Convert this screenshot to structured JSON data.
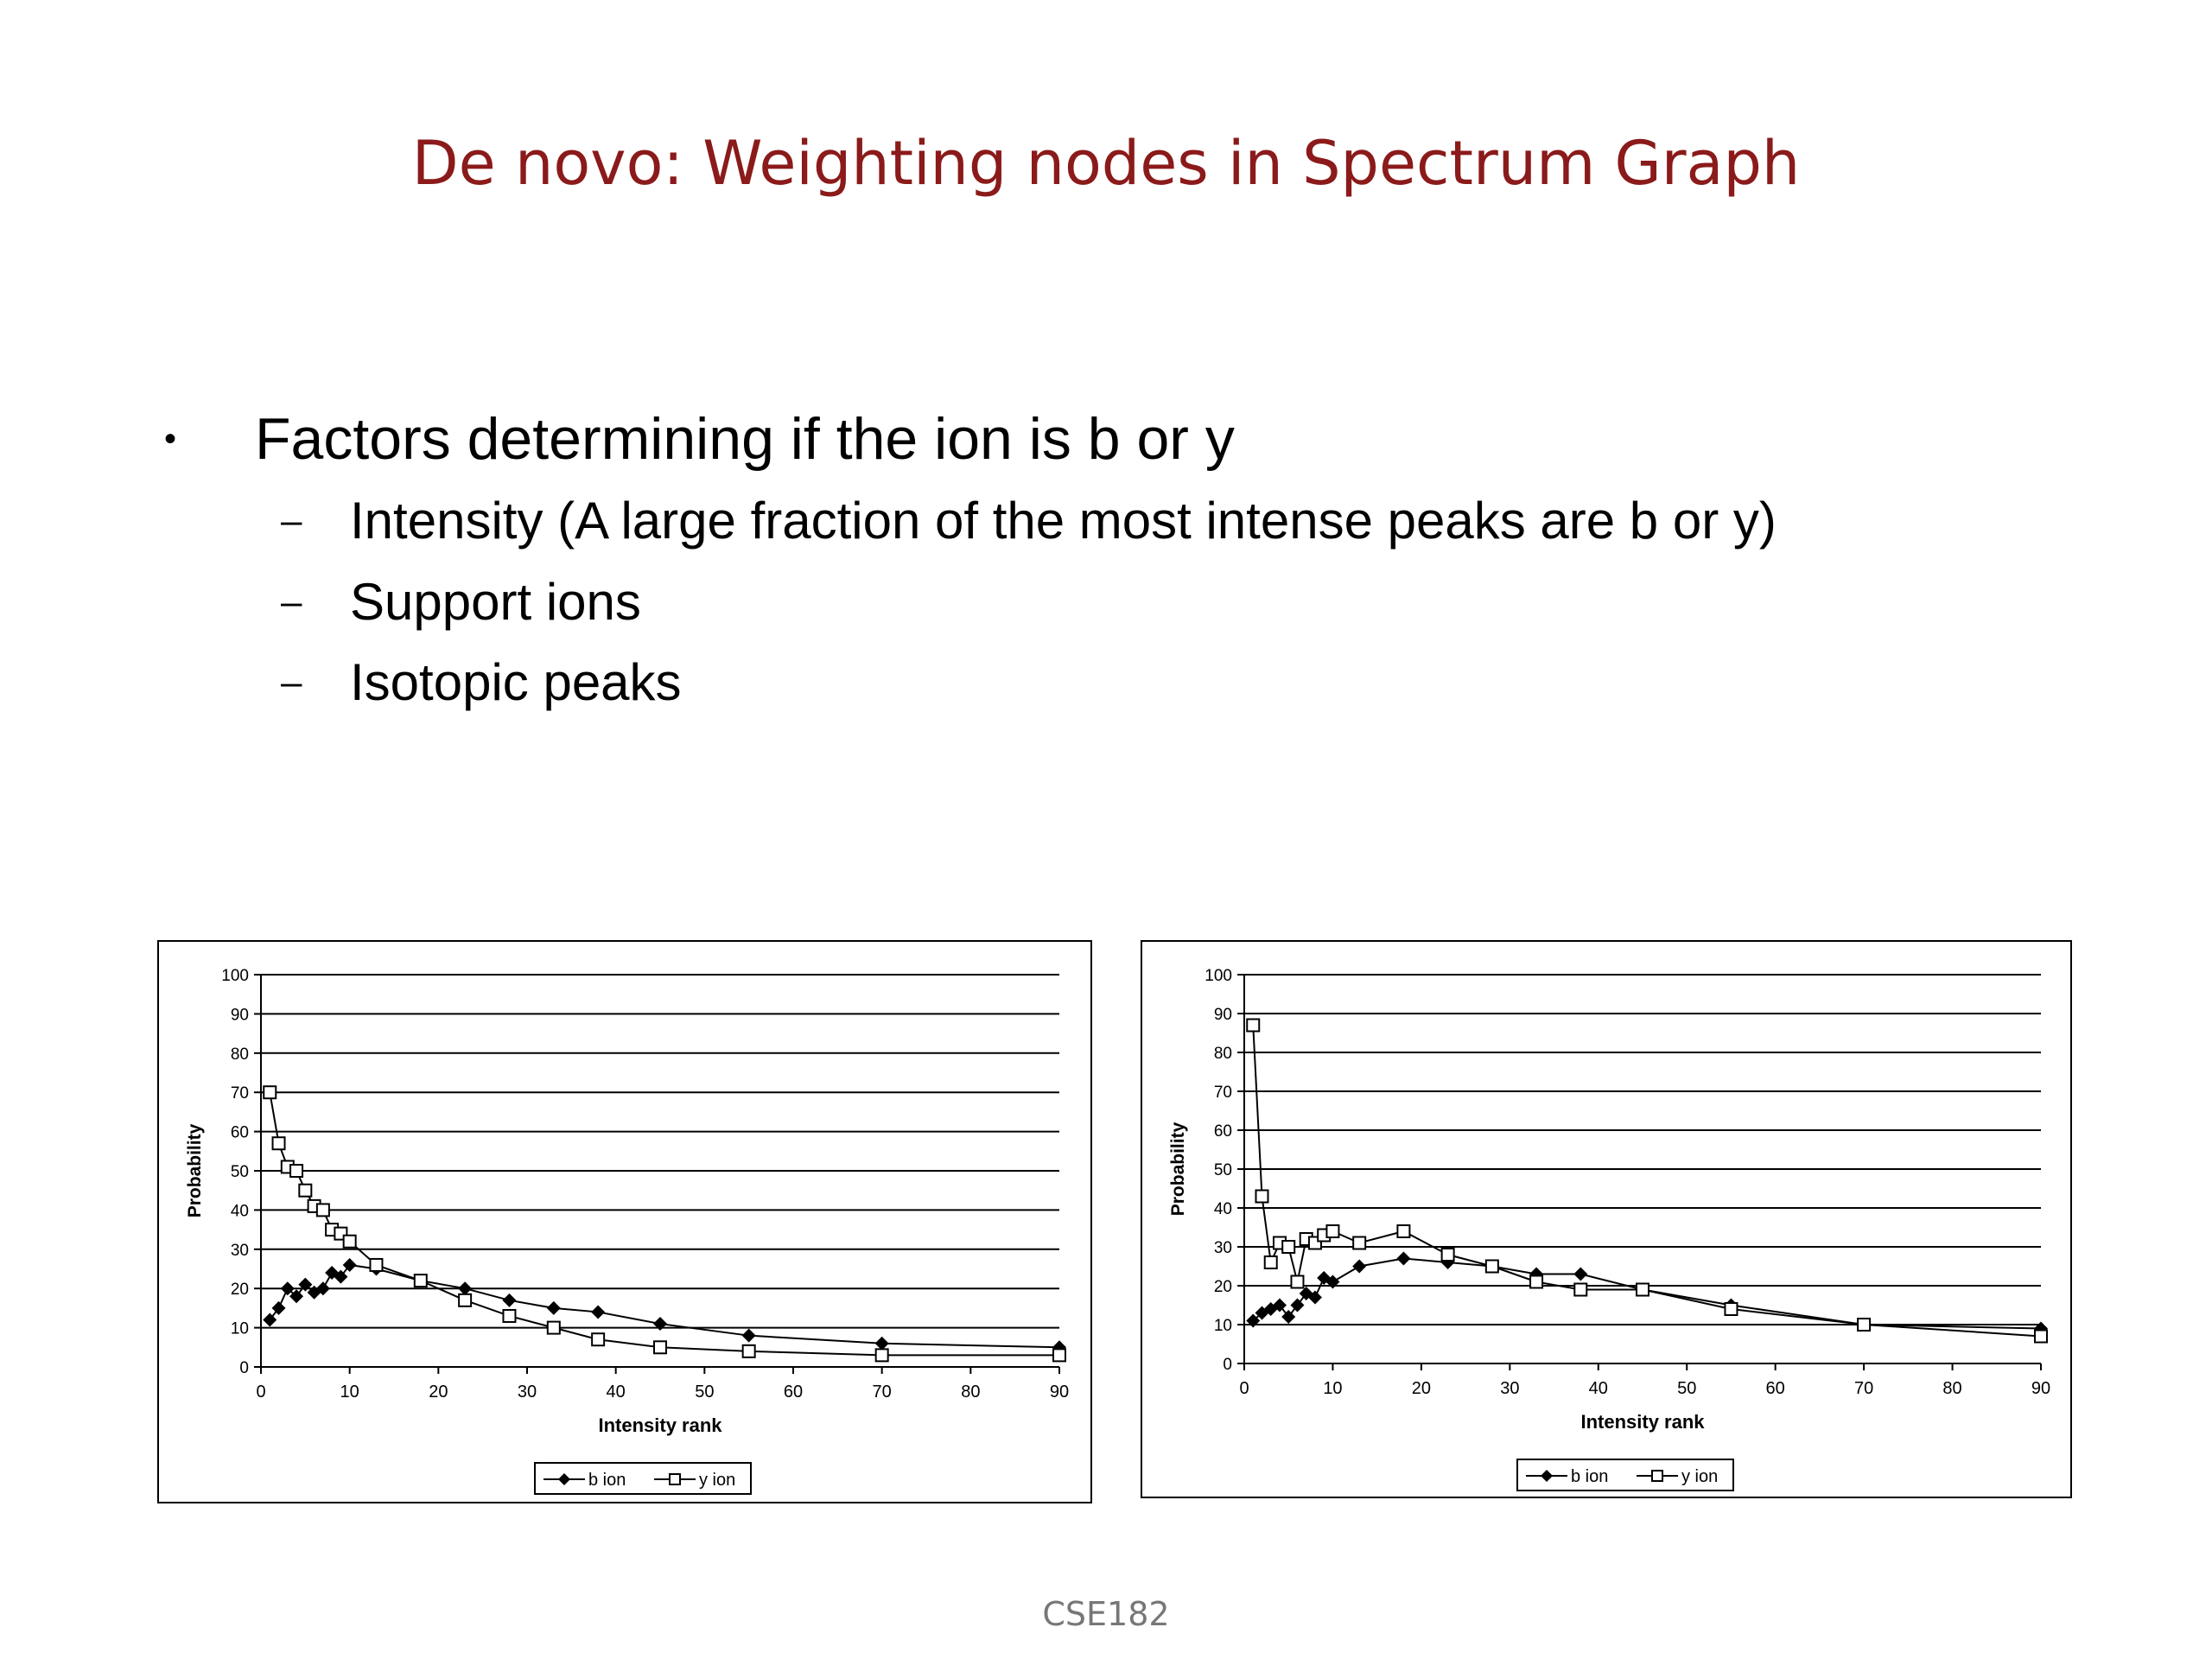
{
  "slide": {
    "title": "De novo: Weighting nodes in Spectrum Graph",
    "bullet": "Factors determining if the ion is b or y",
    "bullet_marker": "•",
    "sub_marker": "–",
    "subitems": [
      "Intensity (A large fraction of the most intense peaks are b or y)",
      "Support ions",
      "Isotopic peaks"
    ],
    "footer": "CSE182"
  },
  "chart_data": [
    {
      "type": "line",
      "title": "",
      "xlabel": "Intensity rank",
      "ylabel": "Probability",
      "xlim": [
        0,
        90
      ],
      "ylim": [
        0,
        100
      ],
      "xticks": [
        0,
        10,
        20,
        30,
        40,
        50,
        60,
        70,
        80,
        90
      ],
      "yticks": [
        0,
        10,
        20,
        30,
        40,
        50,
        60,
        70,
        80,
        90,
        100
      ],
      "grid": "horizontal",
      "legend": "bottom-center",
      "series": [
        {
          "name": "b ion",
          "marker": "filled-diamond",
          "x": [
            1,
            2,
            3,
            4,
            5,
            6,
            7,
            8,
            9,
            10,
            13,
            18,
            23,
            28,
            33,
            38,
            45,
            55,
            70,
            90
          ],
          "y": [
            12,
            15,
            20,
            18,
            21,
            19,
            20,
            24,
            23,
            26,
            25,
            22,
            20,
            17,
            15,
            14,
            11,
            8,
            6,
            5
          ]
        },
        {
          "name": "y ion",
          "marker": "hollow-square",
          "x": [
            1,
            2,
            3,
            4,
            5,
            6,
            7,
            8,
            9,
            10,
            13,
            18,
            23,
            28,
            33,
            38,
            45,
            55,
            70,
            90
          ],
          "y": [
            70,
            57,
            51,
            50,
            45,
            41,
            40,
            35,
            34,
            32,
            26,
            22,
            17,
            13,
            10,
            7,
            5,
            4,
            3,
            3
          ]
        }
      ]
    },
    {
      "type": "line",
      "title": "",
      "xlabel": "Intensity rank",
      "ylabel": "Probability",
      "xlim": [
        0,
        90
      ],
      "ylim": [
        0,
        100
      ],
      "xticks": [
        0,
        10,
        20,
        30,
        40,
        50,
        60,
        70,
        80,
        90
      ],
      "yticks": [
        0,
        10,
        20,
        30,
        40,
        50,
        60,
        70,
        80,
        90,
        100
      ],
      "grid": "horizontal",
      "legend": "bottom-center",
      "series": [
        {
          "name": "b ion",
          "marker": "filled-diamond",
          "x": [
            1,
            2,
            3,
            4,
            5,
            6,
            7,
            8,
            9,
            10,
            13,
            18,
            23,
            28,
            33,
            38,
            45,
            55,
            70,
            90
          ],
          "y": [
            11,
            13,
            14,
            15,
            12,
            15,
            18,
            17,
            22,
            21,
            25,
            27,
            26,
            25,
            23,
            23,
            19,
            15,
            10,
            9
          ]
        },
        {
          "name": "y ion",
          "marker": "hollow-square",
          "x": [
            1,
            2,
            3,
            4,
            5,
            6,
            7,
            8,
            9,
            10,
            13,
            18,
            23,
            28,
            33,
            38,
            45,
            55,
            70,
            90
          ],
          "y": [
            87,
            43,
            26,
            31,
            30,
            21,
            32,
            31,
            33,
            34,
            31,
            34,
            28,
            25,
            21,
            19,
            19,
            14,
            10,
            7
          ]
        }
      ]
    }
  ]
}
